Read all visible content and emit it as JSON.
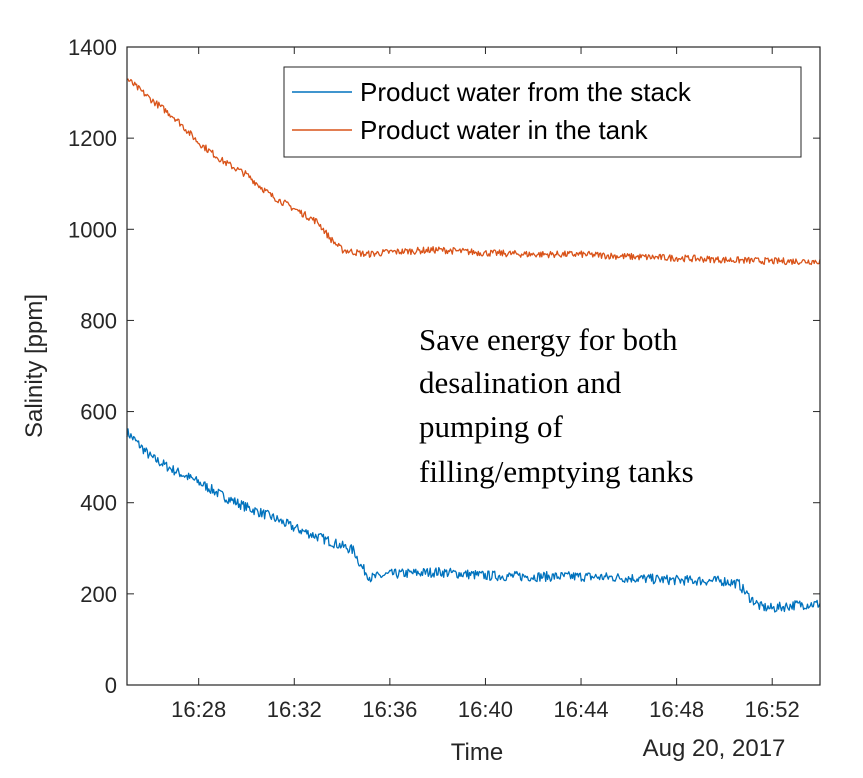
{
  "chart_data": {
    "type": "line",
    "xlabel": "Time",
    "ylabel": "Salinity [ppm]",
    "date_label": "Aug 20, 2017",
    "xlim": [
      "16:25",
      "16:54"
    ],
    "ylim": [
      0,
      1400
    ],
    "x_ticks": [
      "16:28",
      "16:32",
      "16:36",
      "16:40",
      "16:44",
      "16:48",
      "16:52"
    ],
    "y_ticks": [
      0,
      200,
      400,
      600,
      800,
      1000,
      1200,
      1400
    ],
    "grid": false,
    "legend_position": "top-right",
    "series": [
      {
        "name": "Product water from the stack",
        "color": "#0072BD",
        "points": [
          [
            "16:25",
            555
          ],
          [
            "16:26",
            500
          ],
          [
            "16:27",
            470
          ],
          [
            "16:28",
            445
          ],
          [
            "16:29",
            415
          ],
          [
            "16:30",
            390
          ],
          [
            "16:31",
            370
          ],
          [
            "16:32",
            345
          ],
          [
            "16:33",
            325
          ],
          [
            "16:34",
            305
          ],
          [
            "16:34.5",
            295
          ],
          [
            "16:34.8",
            260
          ],
          [
            "16:35.2",
            235
          ],
          [
            "16:36",
            243
          ],
          [
            "16:38",
            248
          ],
          [
            "16:40",
            240
          ],
          [
            "16:42",
            238
          ],
          [
            "16:44",
            238
          ],
          [
            "16:46",
            235
          ],
          [
            "16:48",
            230
          ],
          [
            "16:50",
            228
          ],
          [
            "16:50.6",
            222
          ],
          [
            "16:51",
            195
          ],
          [
            "16:51.5",
            172
          ],
          [
            "16:52",
            168
          ],
          [
            "16:53",
            176
          ],
          [
            "16:54",
            178
          ]
        ]
      },
      {
        "name": "Product water in the tank",
        "color": "#D95319",
        "points": [
          [
            "16:25",
            1330
          ],
          [
            "16:26",
            1285
          ],
          [
            "16:27",
            1245
          ],
          [
            "16:28",
            1190
          ],
          [
            "16:29",
            1150
          ],
          [
            "16:30",
            1120
          ],
          [
            "16:31",
            1075
          ],
          [
            "16:32",
            1045
          ],
          [
            "16:33",
            1015
          ],
          [
            "16:33.5",
            980
          ],
          [
            "16:34",
            955
          ],
          [
            "16:35",
            945
          ],
          [
            "16:36",
            950
          ],
          [
            "16:38",
            955
          ],
          [
            "16:40",
            948
          ],
          [
            "16:42",
            945
          ],
          [
            "16:44",
            945
          ],
          [
            "16:46",
            940
          ],
          [
            "16:48",
            937
          ],
          [
            "16:50",
            933
          ],
          [
            "16:52",
            930
          ],
          [
            "16:54",
            930
          ]
        ]
      }
    ],
    "annotation": [
      "Save energy for both",
      "desalination and",
      "pumping of",
      "filling/emptying tanks"
    ]
  }
}
